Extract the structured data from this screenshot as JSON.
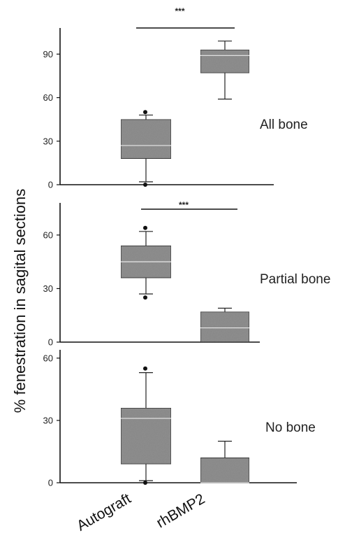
{
  "chart_data": {
    "type": "box",
    "ylabel": "% fenestration in sagital sections",
    "categories": [
      "Autograft",
      "rhBMP2"
    ],
    "panels": [
      {
        "label": "All bone",
        "significance": "***",
        "yticks": [
          0,
          30,
          60,
          90
        ],
        "ylim": [
          0,
          108
        ],
        "boxes": [
          {
            "category": "Autograft",
            "min": 2,
            "q1": 18,
            "median": 27,
            "q3": 45,
            "max": 48,
            "outliers": [
              0,
              50
            ]
          },
          {
            "category": "rhBMP2",
            "min": 59,
            "q1": 77,
            "median": 89,
            "q3": 93,
            "max": 99,
            "outliers": []
          }
        ]
      },
      {
        "label": "Partial bone",
        "significance": "***",
        "yticks": [
          0,
          30,
          60
        ],
        "ylim": [
          0,
          78
        ],
        "boxes": [
          {
            "category": "Autograft",
            "min": 27,
            "q1": 36,
            "median": 45,
            "q3": 54,
            "max": 62,
            "outliers": [
              25,
              64
            ]
          },
          {
            "category": "rhBMP2",
            "min": 0,
            "q1": 0,
            "median": 8,
            "q3": 17,
            "max": 19,
            "outliers": []
          }
        ]
      },
      {
        "label": "No bone",
        "significance": "",
        "yticks": [
          0,
          30,
          60
        ],
        "ylim": [
          0,
          64
        ],
        "boxes": [
          {
            "category": "Autograft",
            "min": 1,
            "q1": 9,
            "median": 31,
            "q3": 36,
            "max": 53,
            "outliers": [
              0,
              55
            ]
          },
          {
            "category": "rhBMP2",
            "min": 0,
            "q1": 0,
            "median": 0,
            "q3": 12,
            "max": 20,
            "outliers": []
          }
        ]
      }
    ]
  }
}
